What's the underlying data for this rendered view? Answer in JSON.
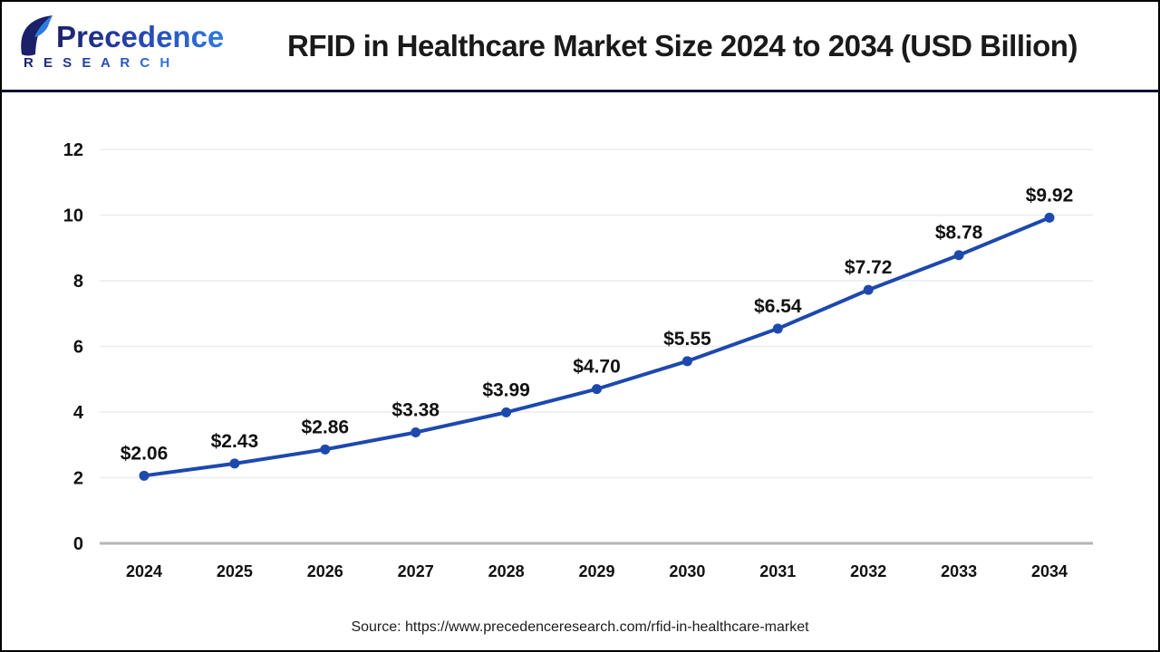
{
  "header": {
    "title": "RFID in Healthcare Market Size 2024 to 2034 (USD Billion)",
    "logo": {
      "line1": "Precedence",
      "line2": "R E S E A R C H",
      "color_dark": "#1b2168",
      "color_light": "#2e7ce0"
    }
  },
  "chart_data": {
    "type": "line",
    "title": "RFID in Healthcare Market Size 2024 to 2034 (USD Billion)",
    "x": [
      "2024",
      "2025",
      "2026",
      "2027",
      "2028",
      "2029",
      "2030",
      "2031",
      "2032",
      "2033",
      "2034"
    ],
    "values": [
      2.06,
      2.43,
      2.86,
      3.38,
      3.99,
      4.7,
      5.55,
      6.54,
      7.72,
      8.78,
      9.92
    ],
    "point_labels": [
      "$2.06",
      "$2.43",
      "$2.86",
      "$3.38",
      "$3.99",
      "$4.70",
      "$5.55",
      "$6.54",
      "$7.72",
      "$8.78",
      "$9.92"
    ],
    "ylim": [
      0,
      12
    ],
    "yticks": [
      0,
      2,
      4,
      6,
      8,
      10,
      12
    ],
    "xlabel": "",
    "ylabel": "",
    "grid": true,
    "legend": "none",
    "line_color": "#1d49ae",
    "grid_color": "#ececec",
    "baseline_color": "#b5b5b5",
    "label_color": "#111111"
  },
  "footer": {
    "source_text": "Source: https://www.precedenceresearch.com/rfid-in-healthcare-market"
  }
}
